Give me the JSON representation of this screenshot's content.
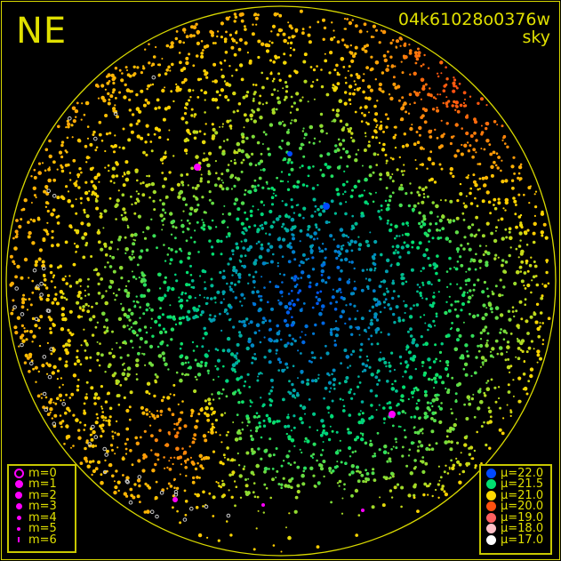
{
  "header": {
    "direction_label": "NE",
    "frame_id": "04k61028o0376w",
    "frame_type": "sky"
  },
  "chart_data": {
    "type": "scatter",
    "title": "",
    "projection": "all-sky circular (polar)",
    "grid": false,
    "horizon_circle": true,
    "color_encoding": "sky brightness mu (mag/arcsec^2)",
    "field_description": "darkest (mu~22) centre-right, green ~21.5 around it, yellow ~21 toward the edges, orange ~20 at the top-right rim and a bright patch at lower-left",
    "star_legend": {
      "position": "bottom-left",
      "color": "#ff00ff",
      "entries": [
        {
          "label": "m=0",
          "style": "ring"
        },
        {
          "label": "m=1"
        },
        {
          "label": "m=2"
        },
        {
          "label": "m=3"
        },
        {
          "label": "m=4"
        },
        {
          "label": "m=5"
        },
        {
          "label": "m=6"
        }
      ]
    },
    "mu_legend": {
      "position": "bottom-right",
      "entries": [
        {
          "label": "μ=22.0",
          "mu": 22.0,
          "color": "#0048ff"
        },
        {
          "label": "μ=21.5",
          "mu": 21.5,
          "color": "#00e070"
        },
        {
          "label": "μ=21.0",
          "mu": 21.0,
          "color": "#ffd800"
        },
        {
          "label": "μ=20.0",
          "mu": 20.0,
          "color": "#ff5010"
        },
        {
          "label": "μ=19.0",
          "mu": 19.0,
          "color": "#ff6060"
        },
        {
          "label": "μ=18.0",
          "mu": 18.0,
          "color": "#ffc0c8"
        },
        {
          "label": "μ=17.0",
          "mu": 17.0,
          "color": "#ffffff"
        }
      ]
    }
  },
  "colors": {
    "frame": "#d8d800",
    "text": "#e0e000",
    "star": "#ff00ff",
    "masked": "#cccccc"
  }
}
